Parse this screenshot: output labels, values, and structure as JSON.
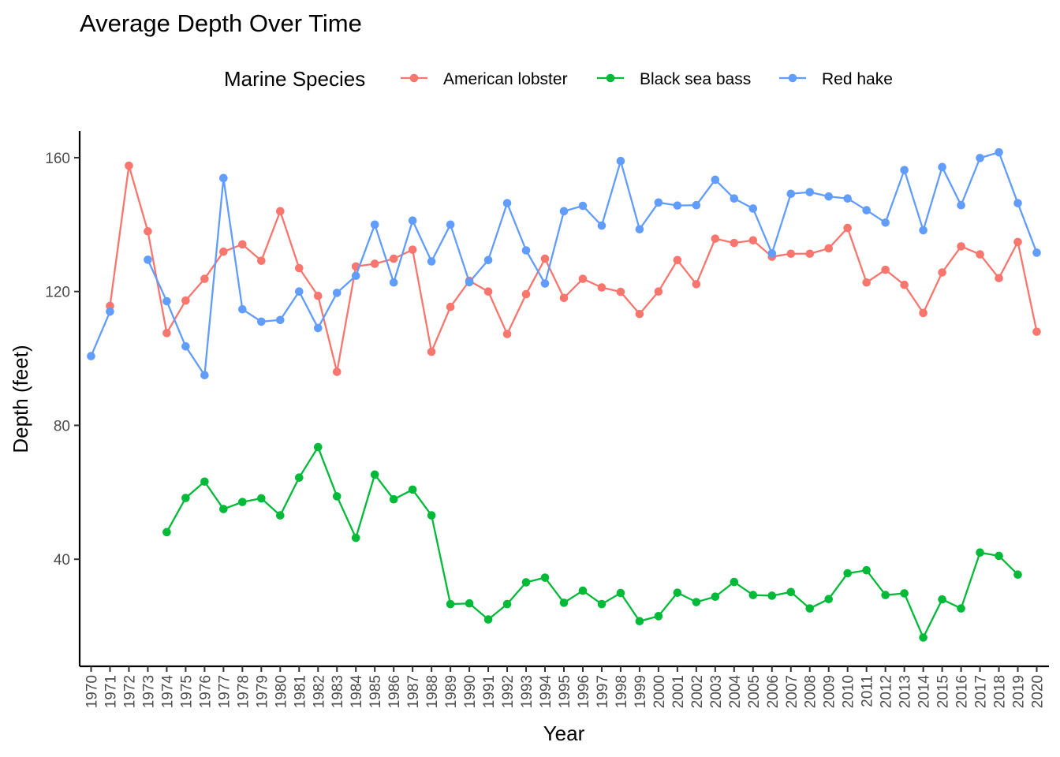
{
  "chart_data": {
    "type": "line",
    "title": "Average Depth Over Time",
    "xlabel": "Year",
    "ylabel": "Depth (feet)",
    "legend_title": "Marine Species",
    "legend_position": "top",
    "grid": false,
    "ylim": [
      8,
      168
    ],
    "y_ticks": [
      40,
      80,
      120,
      160
    ],
    "x": [
      "1970",
      "1971",
      "1972",
      "1973",
      "1974",
      "1975",
      "1976",
      "1977",
      "1978",
      "1979",
      "1980",
      "1981",
      "1982",
      "1983",
      "1984",
      "1985",
      "1986",
      "1987",
      "1988",
      "1989",
      "1990",
      "1991",
      "1992",
      "1993",
      "1994",
      "1995",
      "1996",
      "1997",
      "1998",
      "1999",
      "2000",
      "2001",
      "2002",
      "2003",
      "2004",
      "2005",
      "2006",
      "2007",
      "2008",
      "2009",
      "2010",
      "2011",
      "2012",
      "2013",
      "2014",
      "2015",
      "2016",
      "2017",
      "2018",
      "2019",
      "2020"
    ],
    "series": [
      {
        "name": "American lobster",
        "color": "#F8766D",
        "values": [
          null,
          115.7,
          157.6,
          138,
          107.6,
          117.3,
          123.8,
          131.9,
          134.1,
          129.2,
          144,
          127,
          118.7,
          96,
          127.5,
          128.3,
          129.8,
          132.5,
          102,
          115.4,
          123.2,
          120,
          107.3,
          119.2,
          129.8,
          118.1,
          123.8,
          121.2,
          119.9,
          113.3,
          120,
          129.4,
          122.2,
          135.8,
          134.5,
          135.3,
          130.4,
          131.3,
          131.3,
          132.9,
          139,
          122.7,
          126.5,
          122,
          113.6,
          125.7,
          133.5,
          131.1,
          124,
          134.8,
          108
        ]
      },
      {
        "name": "Black sea bass",
        "color": "#00BA38",
        "values": [
          null,
          null,
          null,
          null,
          48.1,
          58.3,
          63.2,
          55,
          57.1,
          58.2,
          53.1,
          64.4,
          73.5,
          58.8,
          46.4,
          65.3,
          57.9,
          60.8,
          53.1,
          26.6,
          26.8,
          22,
          26.6,
          33.1,
          34.5,
          27,
          30.6,
          26.6,
          29.9,
          21.5,
          23,
          30,
          27.2,
          28.8,
          33.2,
          29.3,
          29.1,
          30.2,
          25.3,
          28.1,
          35.8,
          36.7,
          29.3,
          29.8,
          16.6,
          28,
          25.3,
          42,
          41,
          35.4,
          null
        ]
      },
      {
        "name": "Red hake",
        "color": "#619CFF",
        "values": [
          100.7,
          114,
          null,
          129.5,
          117.1,
          103.6,
          95,
          153.9,
          114.7,
          111,
          111.5,
          120,
          109.1,
          119.6,
          124.7,
          140,
          122.7,
          141.2,
          129,
          140,
          122.8,
          129.4,
          146.4,
          132.3,
          122.4,
          144,
          145.6,
          139.7,
          159,
          138.6,
          146.6,
          145.7,
          145.8,
          153.4,
          147.8,
          144.8,
          131.4,
          149.2,
          149.7,
          148.4,
          147.8,
          144.3,
          140.6,
          156.3,
          138.3,
          157.2,
          145.8,
          159.9,
          161.6,
          146.4,
          131.6
        ]
      }
    ]
  }
}
